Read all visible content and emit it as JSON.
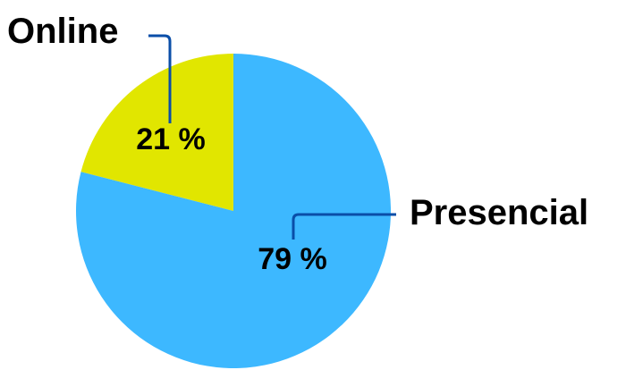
{
  "chart_data": {
    "type": "pie",
    "title": "",
    "slices": [
      {
        "name": "Online",
        "value": 21,
        "value_label": "21 %",
        "color": "#e1e600"
      },
      {
        "name": "Presencial",
        "value": 79,
        "value_label": "79 %",
        "color": "#3db8ff"
      }
    ],
    "start": "top, clockwise",
    "leader_line_color": "#0a4ea8"
  }
}
